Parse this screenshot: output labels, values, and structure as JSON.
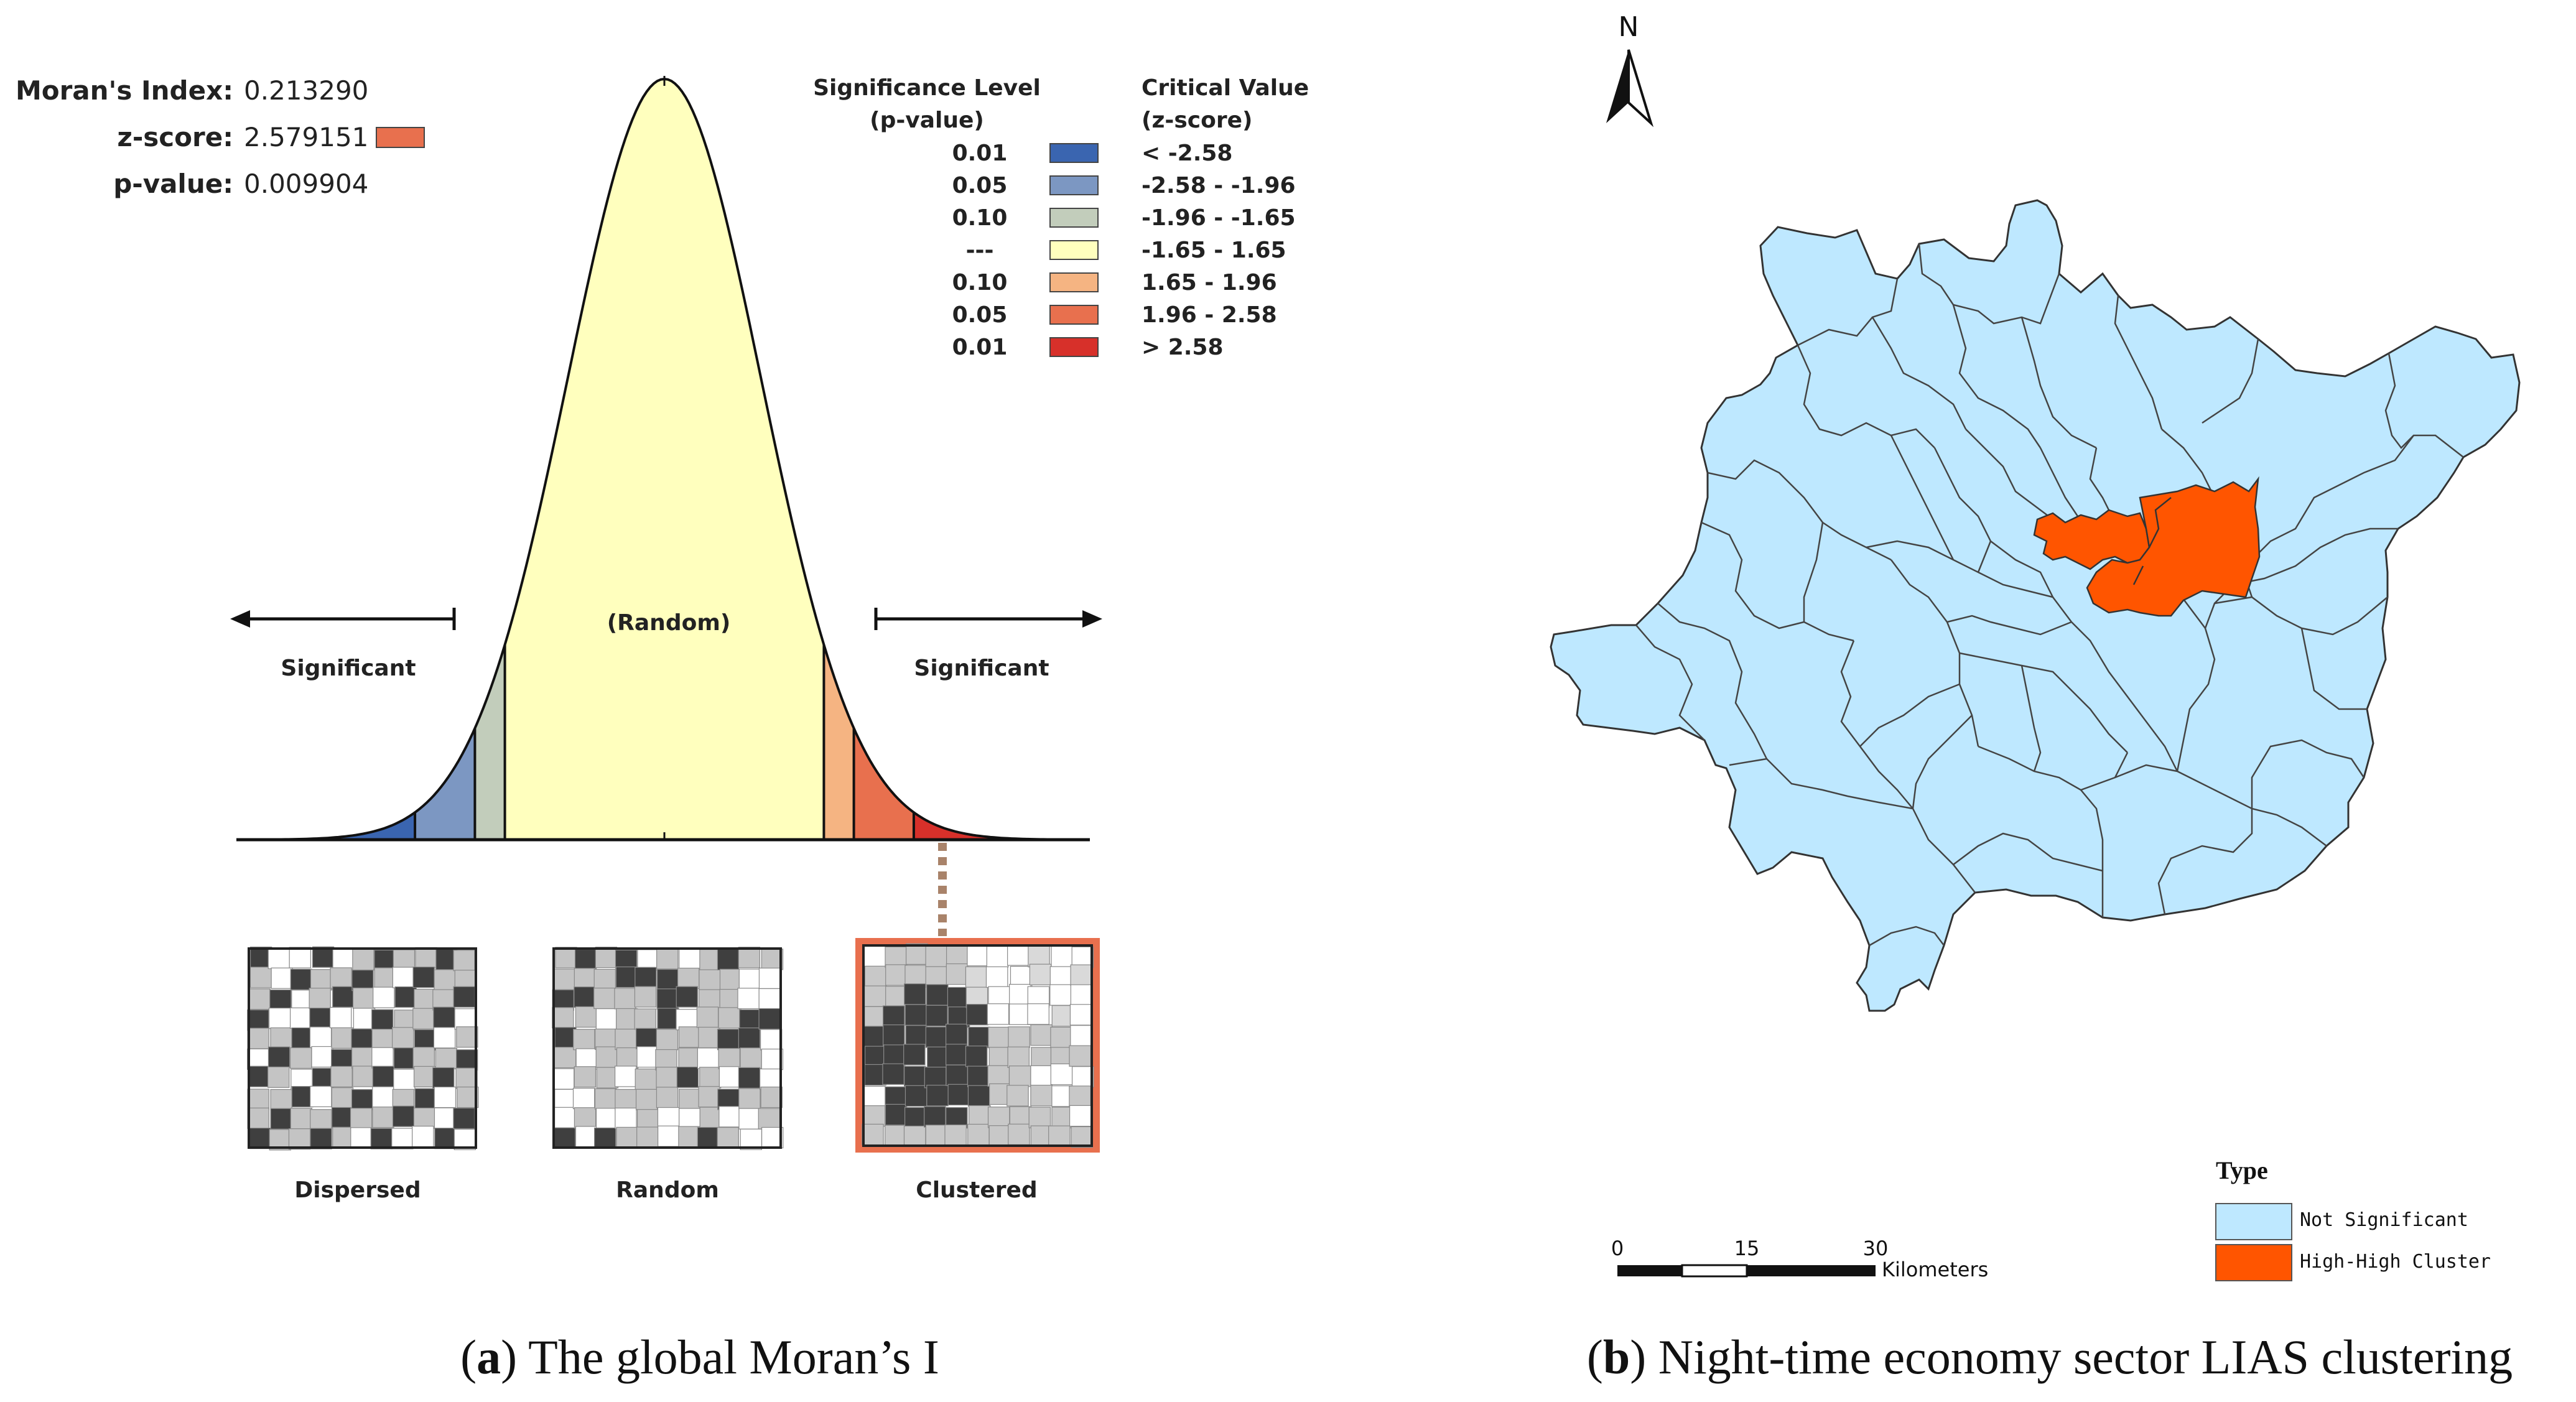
{
  "panel_a": {
    "stats": {
      "moran_label": "Moran's Index:",
      "moran_value": "0.213290",
      "z_label": "z-score:",
      "z_value": "2.579151",
      "p_label": "p-value:",
      "p_value": "0.009904",
      "z_swatch_color": "#e8704e"
    },
    "legend": {
      "sig_header_1": "Significance Level",
      "sig_header_2": "(p-value)",
      "crit_header_1": "Critical Value",
      "crit_header_2": "(z-score)",
      "rows": [
        {
          "p": "0.01",
          "z": "< -2.58",
          "color": "#3a65b0"
        },
        {
          "p": "0.05",
          "z": "-2.58 - -1.96",
          "color": "#7c97c2"
        },
        {
          "p": "0.10",
          "z": "-1.96 - -1.65",
          "color": "#c2cdbb"
        },
        {
          "p": "---",
          "z": "-1.65 - 1.65",
          "color": "#ffffbe"
        },
        {
          "p": "0.10",
          "z": "1.65 - 1.96",
          "color": "#f5b482"
        },
        {
          "p": "0.05",
          "z": "1.96 - 2.58",
          "color": "#e8704e"
        },
        {
          "p": "0.01",
          "z": "> 2.58",
          "color": "#d7302a"
        }
      ]
    },
    "curve_labels": {
      "random": "(Random)",
      "significant_left": "Significant",
      "significant_right": "Significant"
    },
    "pattern_labels": {
      "dispersed": "Dispersed",
      "random": "Random",
      "clustered": "Clustered"
    },
    "caption_letter": "a",
    "caption_text": " The global Moran’s I"
  },
  "panel_b": {
    "north": "N",
    "legend_title": "Type",
    "legend_items": [
      {
        "label": "Not Significant",
        "color": "#bee8ff"
      },
      {
        "label": "High-High Cluster",
        "color": "#ff5500"
      }
    ],
    "scale": {
      "t0": "0",
      "t1": "15",
      "t2": "30",
      "unit": "Kilometers"
    },
    "caption_letter": "b",
    "caption_text": " Night-time economy sector LIAS clustering"
  }
}
